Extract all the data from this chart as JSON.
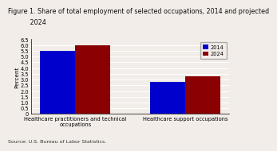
{
  "title_line1": "Figure 1. Share of total employment of selected occupations, 2014 and projected",
  "title_line2": "           2024",
  "ylabel": "Percent",
  "source": "Source: U.S. Bureau of Labor Statistics.",
  "categories": [
    "Healthcare practitioners and technical\noccupations",
    "Healthcare support occupations"
  ],
  "values_2014": [
    5.5,
    2.8
  ],
  "values_2024": [
    6.0,
    3.3
  ],
  "color_2014": "#0000CC",
  "color_2024": "#8B0000",
  "ylim": [
    0,
    6.5
  ],
  "yticks": [
    0,
    0.5,
    1.0,
    1.5,
    2.0,
    2.5,
    3.0,
    3.5,
    4.0,
    4.5,
    5.0,
    5.5,
    6.0,
    6.5
  ],
  "ytick_labels": [
    "0",
    "0.5",
    "1.0",
    "1.5",
    "2.0",
    "2.5",
    "3.0",
    "3.5",
    "4.0",
    "4.5",
    "5.0",
    "5.5",
    "6.0",
    "6.5"
  ],
  "bar_width": 0.32,
  "legend_labels": [
    "2014",
    "2024"
  ],
  "background_color": "#f2ede8",
  "title_fontsize": 5.8,
  "axis_fontsize": 5.2,
  "tick_fontsize": 4.8,
  "source_fontsize": 4.5
}
